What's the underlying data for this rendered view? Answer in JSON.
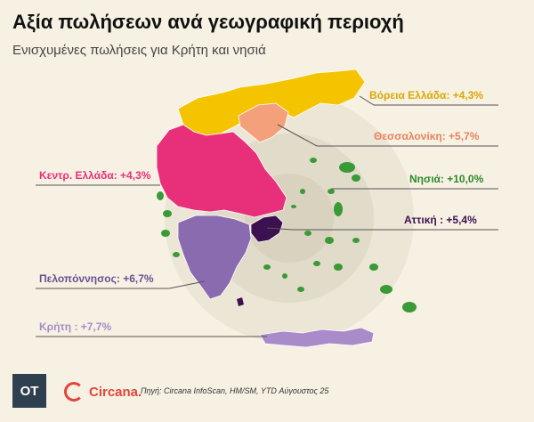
{
  "title": "Αξία πωλήσεων ανά γεωγραφική περιοχή",
  "subtitle": "Ενισχυμένες πωλήσεις για Κρήτη και νησιά",
  "regions": [
    {
      "key": "north",
      "label": "Βόρεια Ελλάδα: +4,3%",
      "color": "#f5c400",
      "value": 4.3
    },
    {
      "key": "thessaloniki",
      "label": "Θεσσαλονίκη: +5,7%",
      "color": "#f4a07a",
      "value": 5.7
    },
    {
      "key": "central",
      "label": "Κεντρ. Ελλάδα: +4,3%",
      "color": "#e8307a",
      "value": 4.3
    },
    {
      "key": "islands",
      "label": "Νησιά: +10,0%",
      "color": "#3a9a35",
      "value": 10.0
    },
    {
      "key": "attica",
      "label": "Αττική : +5,4%",
      "color": "#3d1050",
      "value": 5.4
    },
    {
      "key": "peloponnese",
      "label": "Πελοπόννησος: +6,7%",
      "color": "#8a6bb0",
      "value": 6.7
    },
    {
      "key": "crete",
      "label": "Κρήτη : +7,7%",
      "color": "#a88bc8",
      "value": 7.7
    }
  ],
  "footer": {
    "logo_text": "OT",
    "partner": "Circana.",
    "source": "Πηγή: Circana   InfoScan, HM/SM, YTD Αύγουστος 25"
  }
}
